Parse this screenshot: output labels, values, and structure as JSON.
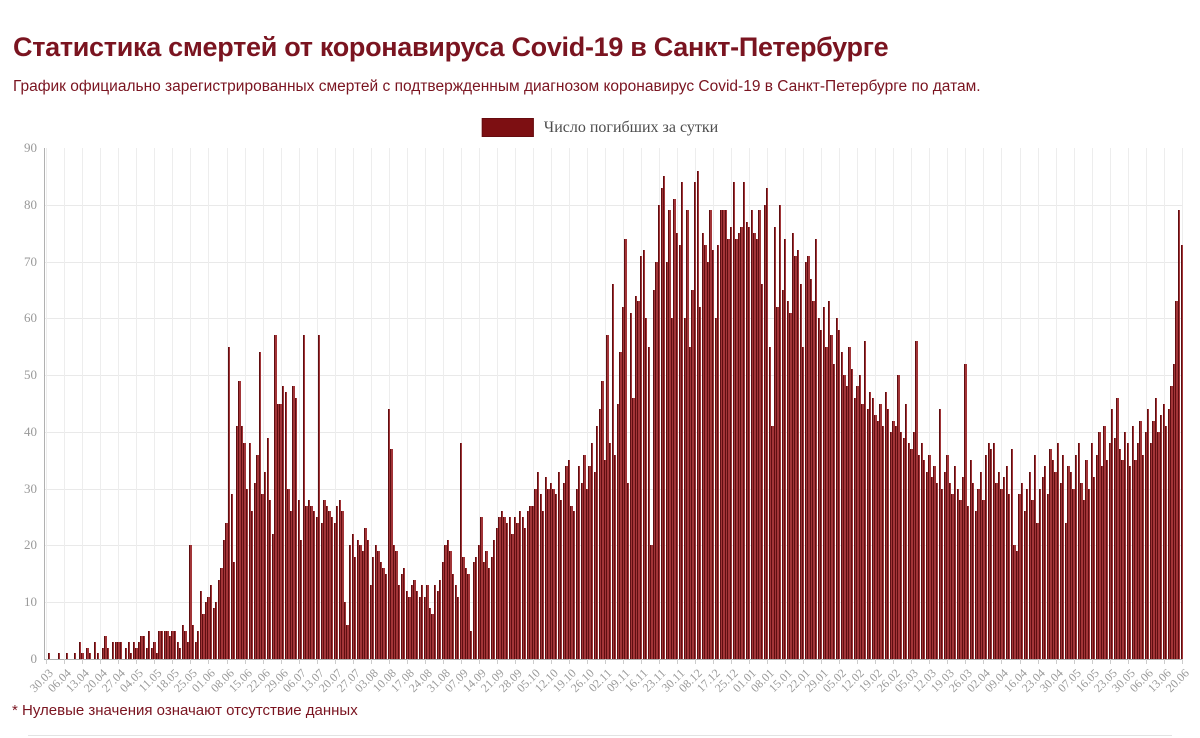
{
  "page": {
    "title": "Статистика смертей от коронавируса Covid-19 в Санкт-Петербурге",
    "subtitle": "График официально зарегистрированных смертей с подтвержденным диагнозом коронавирус Covid-19 в Санкт-Петербурге по датам.",
    "footnote": "* Нулевые значения означают отсутствие данных"
  },
  "legend": {
    "label": "Число погибших за сутки",
    "swatch_color": "#7d0f12"
  },
  "colors": {
    "title_text": "#7a1420",
    "bar_fill": "#a23538",
    "bar_edge": "#5f0e11",
    "grid": "#ededed",
    "axis": "#b0b0b0",
    "tick_text": "#999999"
  },
  "chart_data": {
    "type": "bar",
    "title": "Статистика смертей от коронавируса Covid-19 в Санкт-Петербурге",
    "series_name": "Число погибших за сутки",
    "xlabel": "",
    "ylabel": "",
    "ylim": [
      0,
      90
    ],
    "grid": true,
    "legend_position": "top-center",
    "y_ticks": [
      0,
      10,
      20,
      30,
      40,
      50,
      60,
      70,
      80,
      90
    ],
    "x_tick_every": 7,
    "x_tick_labels": [
      "30.03",
      "06.04",
      "13.04",
      "20.04",
      "27.04",
      "04.05",
      "11.05",
      "18.05",
      "25.05",
      "01.06",
      "08.06",
      "15.06",
      "22.06",
      "29.06",
      "06.07",
      "13.07",
      "20.07",
      "27.07",
      "03.08",
      "10.08",
      "17.08",
      "24.08",
      "31.08",
      "07.09",
      "14.09",
      "21.09",
      "28.09",
      "05.10",
      "12.10",
      "19.10",
      "26.10",
      "02.11",
      "09.11",
      "16.11",
      "23.11",
      "30.11",
      "08.12",
      "17.12",
      "25.12",
      "01.01",
      "08.01",
      "15.01",
      "22.01",
      "29.01",
      "05.02",
      "12.02",
      "19.02",
      "26.02",
      "05.03",
      "12.03",
      "19.03",
      "26.03",
      "02.04",
      "09.04",
      "16.04",
      "23.04",
      "30.04",
      "07.05",
      "16.05",
      "23.05",
      "30.05",
      "06.06",
      "13.06",
      "20.06"
    ],
    "values": [
      0,
      1,
      0,
      0,
      0,
      1,
      0,
      0,
      1,
      0,
      0,
      1,
      0,
      3,
      1,
      0,
      2,
      1,
      0,
      3,
      1,
      0,
      2,
      4,
      2,
      0,
      3,
      3,
      3,
      3,
      0,
      2,
      3,
      1,
      3,
      2,
      3,
      4,
      4,
      2,
      5,
      2,
      3,
      1,
      5,
      5,
      5,
      5,
      4,
      5,
      5,
      3,
      2,
      6,
      5,
      3,
      20,
      6,
      3,
      5,
      12,
      8,
      10,
      11,
      13,
      9,
      10,
      14,
      16,
      21,
      24,
      55,
      29,
      17,
      41,
      49,
      41,
      38,
      30,
      38,
      26,
      31,
      36,
      54,
      29,
      33,
      39,
      28,
      22,
      57,
      45,
      45,
      48,
      47,
      30,
      26,
      48,
      46,
      28,
      21,
      57,
      27,
      28,
      27,
      26,
      25,
      57,
      24,
      28,
      27,
      26,
      25,
      24,
      27,
      28,
      26,
      10,
      6,
      20,
      22,
      18,
      21,
      20,
      19,
      23,
      21,
      13,
      18,
      20,
      19,
      17,
      16,
      15,
      44,
      37,
      20,
      19,
      13,
      15,
      16,
      12,
      11,
      13,
      14,
      12,
      11,
      13,
      11,
      13,
      9,
      8,
      13,
      12,
      14,
      17,
      20,
      21,
      19,
      15,
      13,
      11,
      38,
      18,
      16,
      15,
      5,
      17,
      18,
      20,
      25,
      17,
      19,
      16,
      18,
      21,
      23,
      25,
      26,
      25,
      24,
      25,
      22,
      25,
      24,
      26,
      25,
      23,
      26,
      27,
      27,
      30,
      33,
      29,
      26,
      32,
      30,
      31,
      30,
      29,
      33,
      28,
      31,
      34,
      35,
      27,
      26,
      30,
      34,
      31,
      36,
      30,
      34,
      38,
      33,
      41,
      44,
      49,
      35,
      57,
      38,
      66,
      36,
      45,
      54,
      62,
      74,
      31,
      61,
      46,
      64,
      63,
      71,
      72,
      60,
      55,
      20,
      65,
      70,
      80,
      83,
      85,
      70,
      79,
      60,
      81,
      75,
      73,
      84,
      60,
      79,
      55,
      65,
      84,
      86,
      62,
      75,
      73,
      70,
      79,
      72,
      60,
      73,
      79,
      79,
      79,
      74,
      76,
      84,
      74,
      75,
      76,
      84,
      77,
      76,
      79,
      75,
      74,
      79,
      66,
      80,
      83,
      55,
      41,
      76,
      62,
      80,
      65,
      74,
      63,
      61,
      75,
      71,
      72,
      66,
      55,
      70,
      71,
      67,
      63,
      74,
      60,
      58,
      62,
      55,
      63,
      57,
      52,
      60,
      58,
      54,
      50,
      48,
      55,
      51,
      46,
      48,
      50,
      45,
      56,
      44,
      47,
      46,
      43,
      42,
      45,
      41,
      47,
      44,
      40,
      42,
      41,
      50,
      40,
      39,
      45,
      38,
      37,
      40,
      56,
      36,
      38,
      35,
      33,
      36,
      32,
      34,
      31,
      44,
      30,
      33,
      36,
      31,
      29,
      34,
      30,
      28,
      32,
      52,
      27,
      35,
      31,
      26,
      30,
      33,
      28,
      36,
      38,
      37,
      38,
      31,
      33,
      30,
      32,
      34,
      29,
      37,
      20,
      19,
      29,
      31,
      26,
      30,
      33,
      28,
      36,
      24,
      30,
      32,
      34,
      29,
      37,
      35,
      33,
      38,
      31,
      36,
      24,
      34,
      33,
      30,
      36,
      38,
      31,
      28,
      35,
      30,
      38,
      32,
      36,
      40,
      34,
      41,
      35,
      38,
      44,
      39,
      46,
      37,
      35,
      40,
      38,
      34,
      41,
      35,
      38,
      42,
      36,
      40,
      44,
      38,
      42,
      46,
      40,
      43,
      45,
      41,
      44,
      48,
      52,
      63,
      79,
      73
    ]
  }
}
